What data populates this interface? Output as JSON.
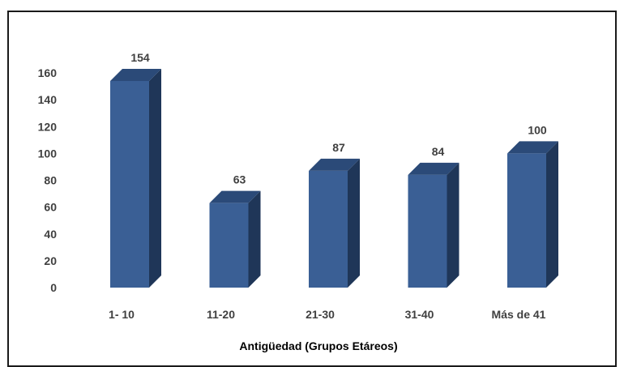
{
  "chart_data": {
    "type": "bar",
    "title": "",
    "xlabel": "Antigüedad (Grupos Etáreos)",
    "ylabel": "",
    "categories": [
      "1- 10",
      "11-20",
      "21-30",
      "31-40",
      "Más de 41"
    ],
    "values": [
      154,
      63,
      87,
      84,
      100
    ],
    "data_labels": [
      "154",
      "63",
      "87",
      "84",
      "100"
    ],
    "ylim": [
      0,
      160
    ],
    "yticks": [
      0,
      20,
      40,
      60,
      80,
      100,
      120,
      140,
      160
    ],
    "ytick_labels": [
      "0",
      "20",
      "40",
      "60",
      "80",
      "100",
      "120",
      "140",
      "160"
    ],
    "grid": false,
    "legend": "none",
    "style": "3d-column",
    "colors": {
      "bar_front": "#3a5f95",
      "bar_side": "#1f3658",
      "bar_top": "#2b4a78",
      "text": "#404040"
    }
  }
}
